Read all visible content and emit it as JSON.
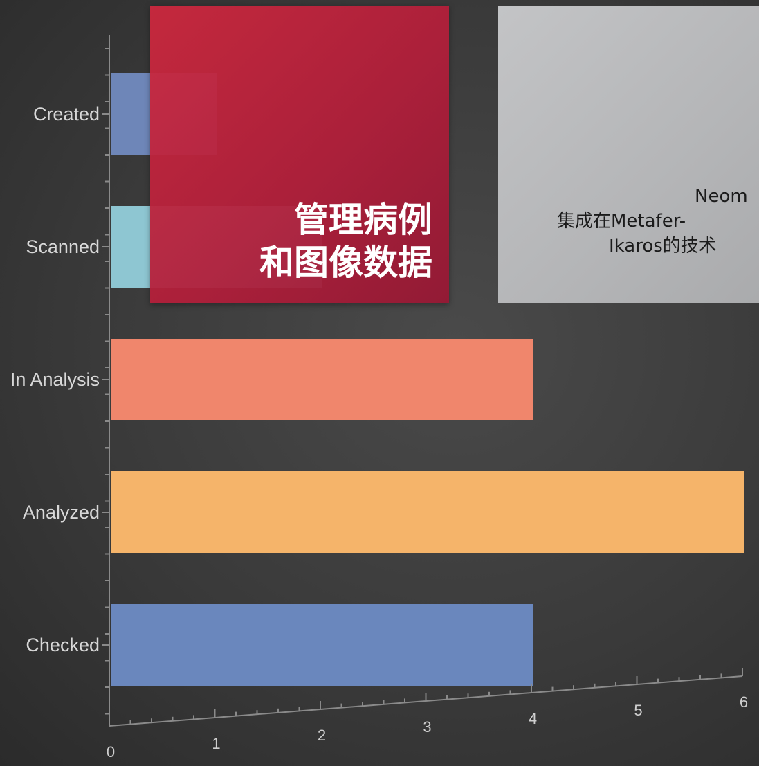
{
  "chart_data": {
    "type": "bar",
    "orientation": "horizontal",
    "categories": [
      "Created",
      "Scanned",
      "In Analysis",
      "Analyzed",
      "Checked"
    ],
    "values": [
      1,
      2,
      4,
      6,
      4
    ],
    "colors": [
      "#6e86b8",
      "#8ec6d2",
      "#f0866c",
      "#f5b46a",
      "#6a87bd"
    ],
    "xlim": [
      0,
      6
    ],
    "x_ticks": [
      "0",
      "1",
      "2",
      "3",
      "4",
      "5",
      "6"
    ],
    "grid": false
  },
  "card_title": {
    "line1": "管理病例",
    "line2": "和图像数据"
  },
  "card_text": {
    "line1": "Neom",
    "line2": "集成在Metafer-",
    "line3": "Ikaros的技术"
  },
  "colors": {
    "card_red": "#b8203c",
    "card_gray": "#bcbdbf",
    "background": "#3a3a3a"
  }
}
